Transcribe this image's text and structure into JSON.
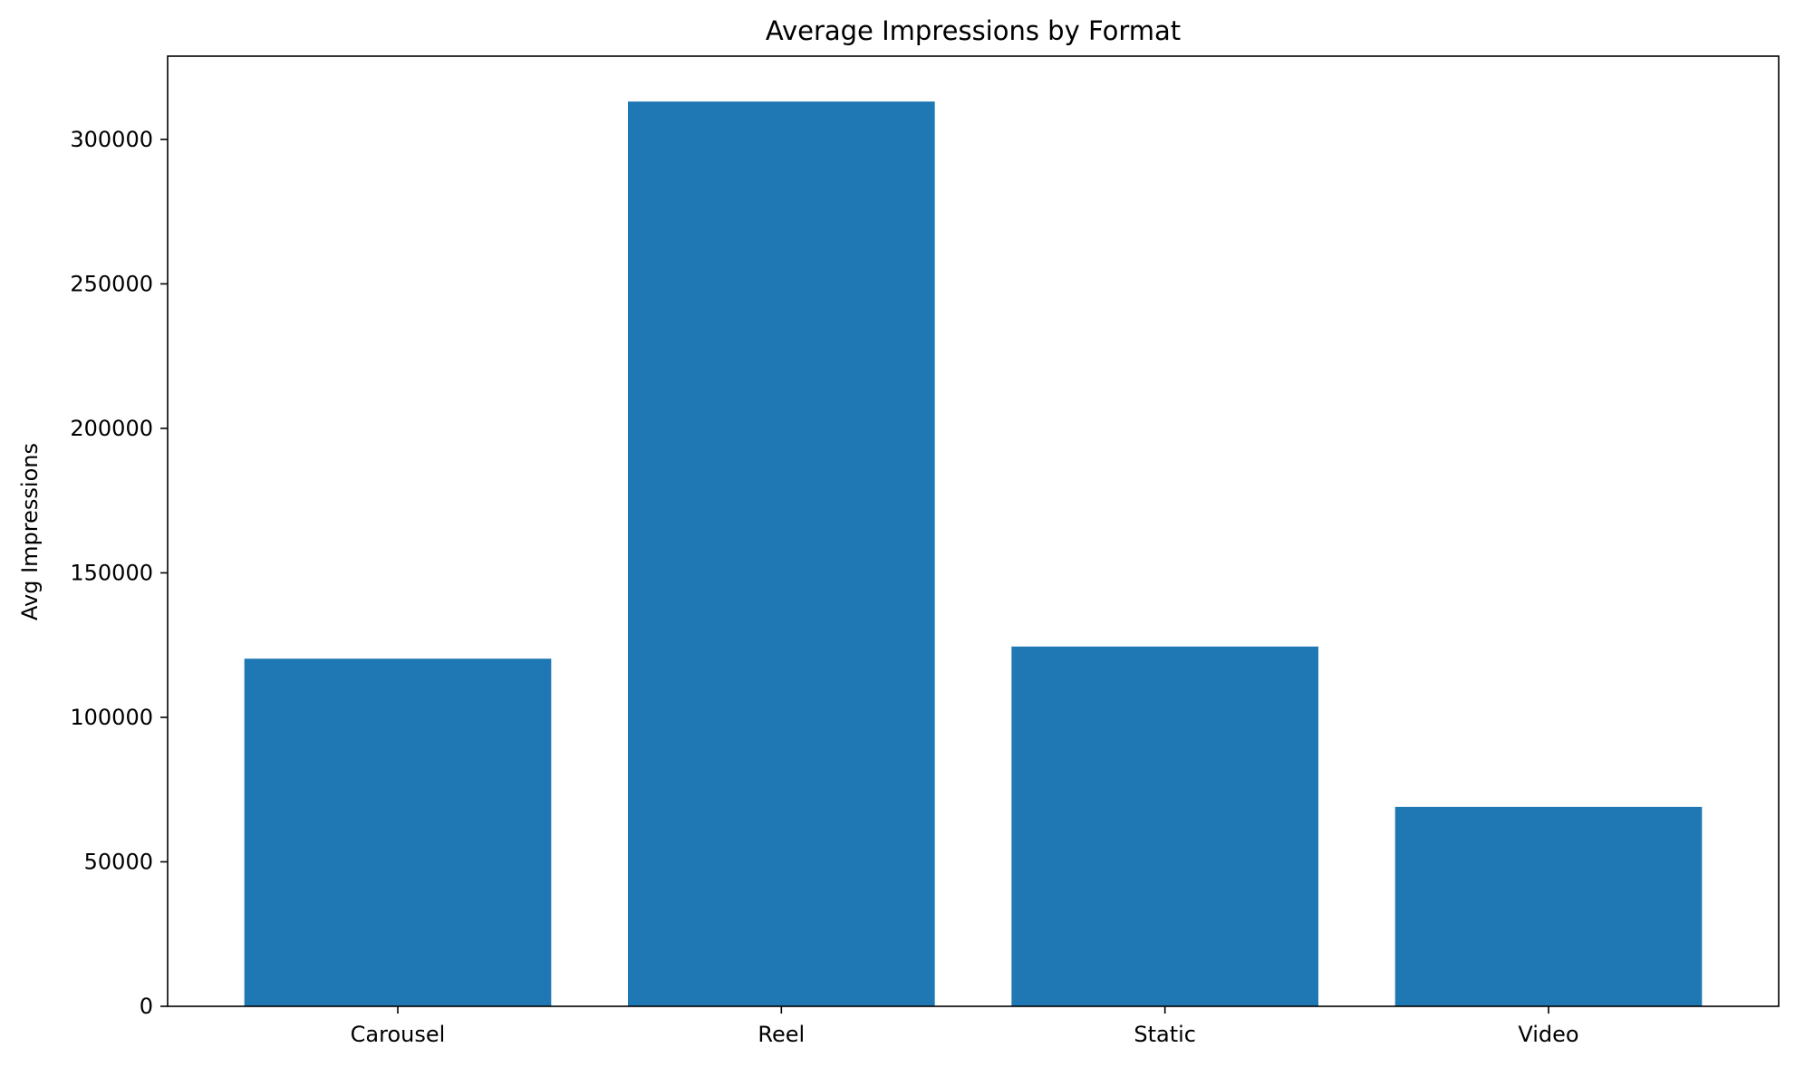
{
  "chart_data": {
    "type": "bar",
    "title": "Average Impressions by Format",
    "xlabel": "",
    "ylabel": "Avg Impressions",
    "categories": [
      "Carousel",
      "Reel",
      "Static",
      "Video"
    ],
    "values": [
      120300,
      313100,
      124500,
      69000
    ],
    "ylim": [
      0,
      328800
    ],
    "yticks": [
      0,
      50000,
      100000,
      150000,
      200000,
      250000,
      300000
    ],
    "ytick_labels": [
      "0",
      "50000",
      "100000",
      "150000",
      "200000",
      "250000",
      "300000"
    ],
    "grid": false,
    "legend": "none",
    "bar_color": "#1f77b4"
  }
}
